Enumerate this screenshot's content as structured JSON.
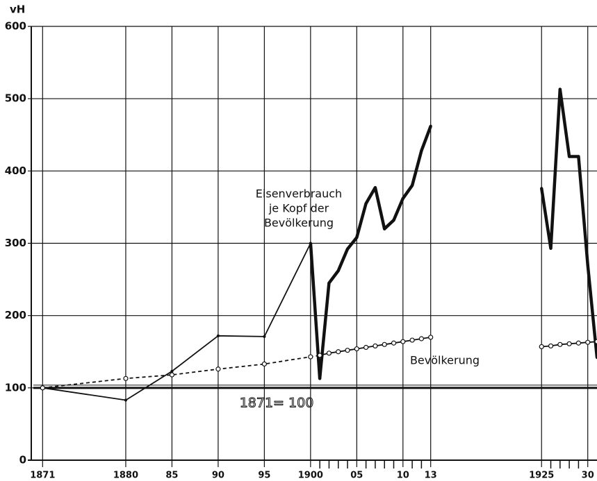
{
  "chart_data": {
    "type": "line",
    "y_label": "vH",
    "annotations": [
      "Eisenverbrauch",
      "je Kopf der",
      "Bevölkerung",
      "Bevölkerung",
      "1871= 100"
    ],
    "x": [
      1871,
      1880,
      1885,
      1890,
      1895,
      1900,
      1901,
      1902,
      1903,
      1904,
      1905,
      1906,
      1907,
      1908,
      1909,
      1910,
      1911,
      1912,
      1913,
      1919,
      1925,
      1926,
      1927,
      1928,
      1929,
      1930,
      1931
    ],
    "series": [
      {
        "name": "Eisenverbrauch je Kopf der Bevölkerung",
        "color": "#111111",
        "bold_from_x": 1900,
        "values": [
          100,
          83,
          123,
          172,
          171,
          300,
          113,
          245,
          262,
          292,
          308,
          355,
          377,
          320,
          332,
          362,
          380,
          428,
          462,
          null,
          376,
          293,
          513,
          420,
          420,
          270,
          142
        ]
      },
      {
        "name": "Bevölkerung",
        "color": "#111111",
        "dashed_until_x": 1900,
        "markers": true,
        "values": [
          100,
          113,
          118,
          126,
          133,
          143,
          145,
          148,
          150,
          152,
          154,
          156,
          158,
          160,
          162,
          164,
          166,
          168,
          170,
          null,
          157,
          158,
          160,
          161,
          162,
          163,
          164
        ]
      }
    ],
    "reference_line": 100,
    "xlim": [
      1870,
      1931
    ],
    "ylim": [
      0,
      600
    ],
    "xticks": [
      1871,
      1880,
      {
        "value": 1885,
        "label": "85"
      },
      {
        "value": 1890,
        "label": "90"
      },
      {
        "value": 1895,
        "label": "95"
      },
      1900,
      {
        "value": 1905,
        "label": "05"
      },
      {
        "value": 1910,
        "label": "10"
      },
      {
        "value": 1913,
        "label": "13"
      },
      1925,
      {
        "value": 1930,
        "label": "30"
      }
    ],
    "xminorticks": [
      1901,
      1902,
      1903,
      1904,
      1906,
      1907,
      1908,
      1909,
      1911,
      1912,
      1926,
      1927,
      1928,
      1929
    ],
    "yticks": [
      0,
      100,
      200,
      300,
      400,
      500,
      600
    ],
    "grid": true
  }
}
